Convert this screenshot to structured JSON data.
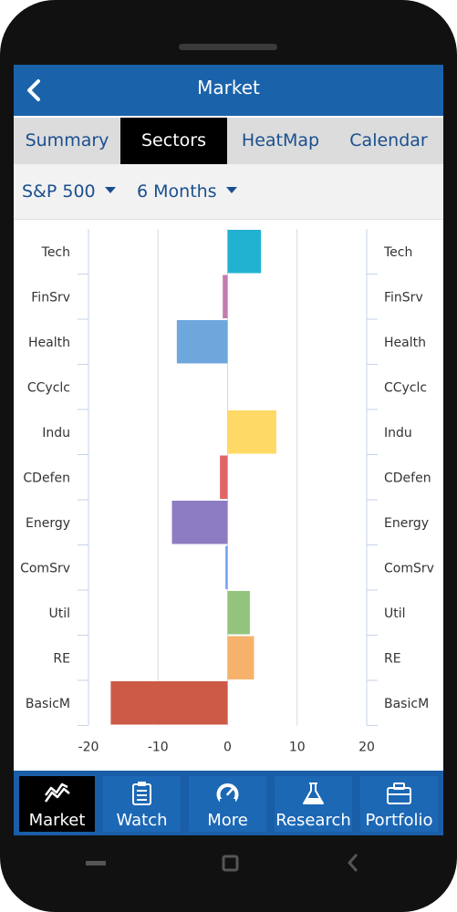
{
  "header": {
    "title": "Market"
  },
  "tabs": [
    {
      "label": "Summary",
      "active": false
    },
    {
      "label": "Sectors",
      "active": true
    },
    {
      "label": "HeatMap",
      "active": false
    },
    {
      "label": "Calendar",
      "active": false
    }
  ],
  "filters": {
    "index": "S&P 500",
    "period": "6 Months"
  },
  "chart_data": {
    "type": "bar",
    "orientation": "horizontal",
    "categories": [
      "Tech",
      "FinSrv",
      "Health",
      "CCyclc",
      "Indu",
      "CDefen",
      "Energy",
      "ComSrv",
      "Util",
      "RE",
      "BasicM"
    ],
    "values": [
      4.8,
      -0.7,
      -7.3,
      0.0,
      7.0,
      -1.1,
      -8.0,
      -0.3,
      3.2,
      3.8,
      -16.8
    ],
    "colors": [
      "#22b2d1",
      "#c47bb0",
      "#6da7dc",
      "#cccccc",
      "#ffd966",
      "#e06666",
      "#8e7cc3",
      "#6d9eeb",
      "#93c47d",
      "#f6b26b",
      "#cc5a46"
    ],
    "xlim": [
      -20,
      20
    ],
    "xticks": [
      "-20",
      "-10",
      "0",
      "10",
      "20"
    ],
    "grid": true,
    "title": "",
    "xlabel": "",
    "ylabel": ""
  },
  "bottom_nav": [
    {
      "label": "Market",
      "icon": "trend-chart-icon",
      "active": true
    },
    {
      "label": "Watch",
      "icon": "clipboard-icon",
      "active": false
    },
    {
      "label": "More",
      "icon": "gauge-icon",
      "active": false
    },
    {
      "label": "Research",
      "icon": "flask-icon",
      "active": false
    },
    {
      "label": "Portfolio",
      "icon": "briefcase-icon",
      "active": false
    }
  ],
  "colors": {
    "header": "#1a63ab",
    "nav": "#1a5ea8",
    "accent_text": "#1a4f8f"
  }
}
